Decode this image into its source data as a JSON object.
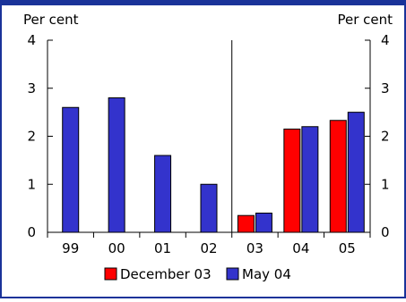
{
  "chart_data": {
    "type": "bar",
    "left_axis_label": "Per cent",
    "right_axis_label": "Per cent",
    "categories": [
      "99",
      "00",
      "01",
      "02",
      "03",
      "04",
      "05"
    ],
    "ylim": [
      0,
      4
    ],
    "yticks": [
      0,
      1,
      2,
      3,
      4
    ],
    "divider_after_category": "02",
    "legend_position": "bottom",
    "series": [
      {
        "name": "December 03",
        "color": "#ff0000",
        "values": [
          null,
          null,
          null,
          null,
          0.35,
          2.15,
          2.33
        ]
      },
      {
        "name": "May 04",
        "color": "#3333cc",
        "values": [
          2.6,
          2.8,
          1.6,
          1.0,
          0.4,
          2.2,
          2.5
        ]
      }
    ]
  }
}
